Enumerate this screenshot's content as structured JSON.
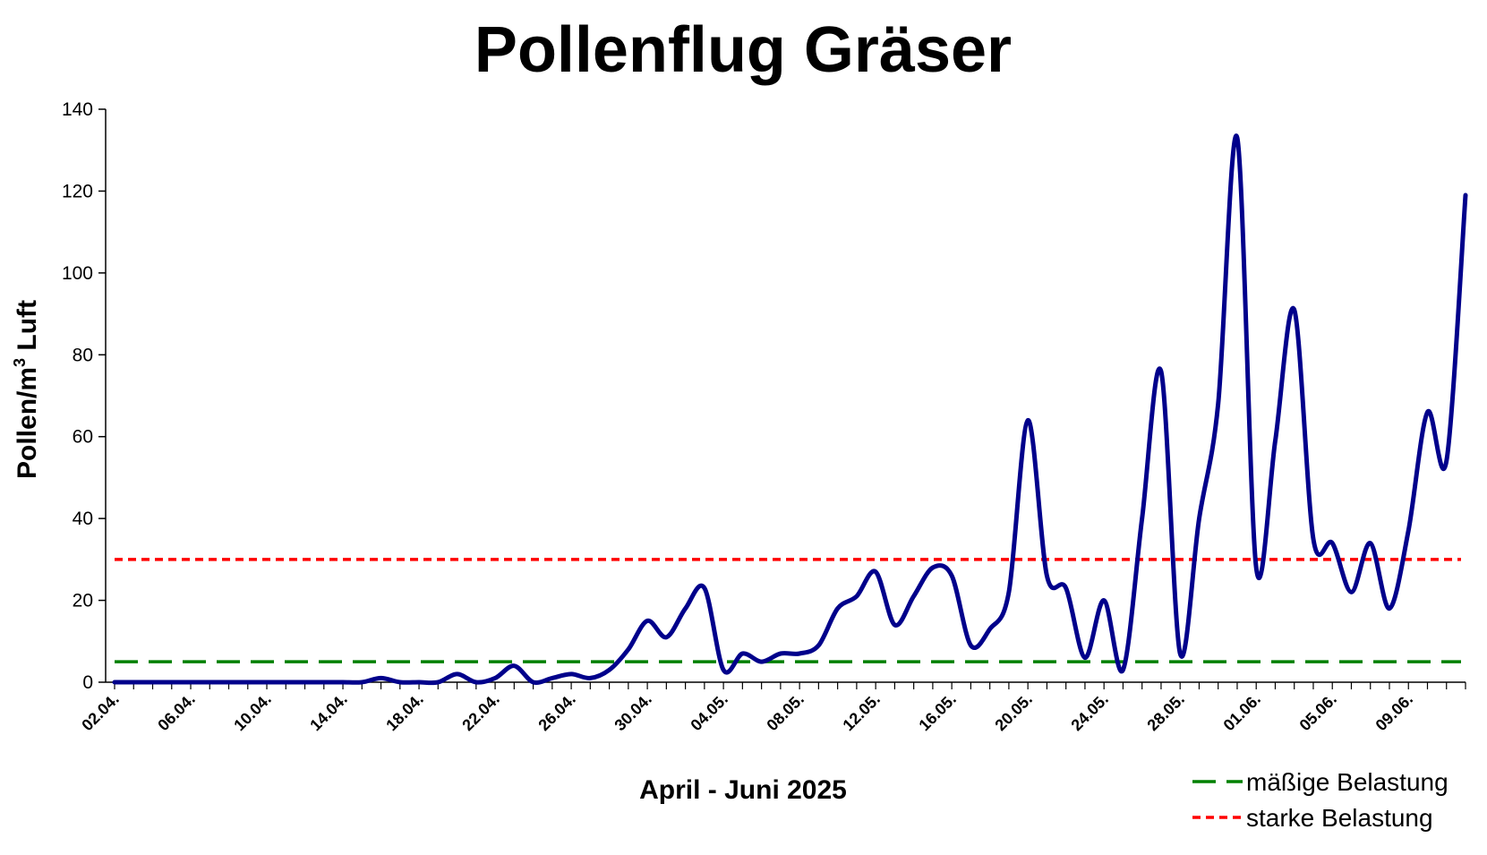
{
  "chart_data": {
    "type": "line",
    "title": "Pollenflug Gräser",
    "xlabel": "April - Juni 2025",
    "ylabel": "Pollen/m",
    "ylabel_superscript": "3",
    "ylabel_suffix": " Luft",
    "ylim": [
      0,
      140
    ],
    "yticks": [
      0,
      20,
      40,
      60,
      80,
      100,
      120,
      140
    ],
    "grid": false,
    "legend_position": "bottom-right",
    "x": [
      "02.04.",
      "03.04.",
      "04.04.",
      "05.04.",
      "06.04.",
      "07.04.",
      "08.04.",
      "09.04.",
      "10.04.",
      "11.04.",
      "12.04.",
      "13.04.",
      "14.04.",
      "15.04.",
      "16.04.",
      "17.04.",
      "18.04.",
      "19.04.",
      "20.04.",
      "21.04.",
      "22.04.",
      "23.04.",
      "24.04.",
      "25.04.",
      "26.04.",
      "27.04.",
      "28.04.",
      "29.04.",
      "30.04.",
      "01.05.",
      "02.05.",
      "03.05.",
      "04.05.",
      "05.05.",
      "06.05.",
      "07.05.",
      "08.05.",
      "09.05.",
      "10.05.",
      "11.05.",
      "12.05.",
      "13.05.",
      "14.05.",
      "15.05.",
      "16.05.",
      "17.05.",
      "18.05.",
      "19.05.",
      "20.05.",
      "21.05.",
      "22.05.",
      "23.05.",
      "24.05.",
      "25.05.",
      "26.05.",
      "27.05.",
      "28.05.",
      "29.05.",
      "30.05.",
      "31.05.",
      "01.06.",
      "02.06.",
      "03.06.",
      "04.06.",
      "05.06.",
      "06.06.",
      "07.06.",
      "08.06.",
      "09.06.",
      "10.06.",
      "11.06.",
      "12.06."
    ],
    "xtick_labels": [
      "02.04.",
      "06.04.",
      "10.04.",
      "14.04.",
      "18.04.",
      "22.04.",
      "26.04.",
      "30.04.",
      "04.05.",
      "08.05.",
      "12.05.",
      "16.05.",
      "20.05.",
      "24.05.",
      "28.05.",
      "01.06.",
      "05.06.",
      "09.06."
    ],
    "series": [
      {
        "name": "",
        "color": "#00008B",
        "values": [
          0,
          0,
          0,
          0,
          0,
          0,
          0,
          0,
          0,
          0,
          0,
          0,
          0,
          0,
          1,
          0,
          0,
          0,
          2,
          0,
          1,
          4,
          0,
          1,
          2,
          1,
          3,
          8,
          15,
          11,
          18,
          23,
          3,
          7,
          5,
          7,
          7,
          9,
          18,
          21,
          27,
          14,
          21,
          28,
          26,
          9,
          13,
          22,
          64,
          26,
          23,
          6,
          20,
          3,
          40,
          76,
          7,
          40,
          68,
          133,
          28,
          59,
          91,
          35,
          34,
          22,
          34,
          18,
          37,
          66,
          54,
          119
        ]
      }
    ],
    "reference_lines": [
      {
        "name": "mäßige Belastung",
        "value": 5,
        "color": "#008000",
        "style": "long-dash"
      },
      {
        "name": "starke Belastung",
        "value": 30,
        "color": "#FF0000",
        "style": "short-dash"
      }
    ]
  }
}
